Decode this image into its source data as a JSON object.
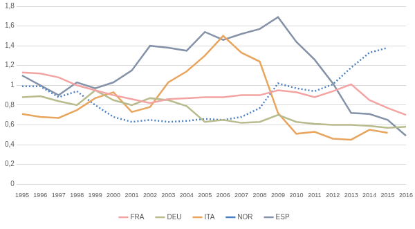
{
  "chart_data": {
    "type": "line",
    "categories": [
      "1995",
      "1996",
      "1997",
      "1998",
      "1999",
      "2000",
      "2001",
      "2002",
      "2003",
      "2004",
      "2005",
      "2006",
      "2007",
      "2008",
      "2009",
      "2010",
      "2011",
      "2012",
      "2013",
      "2014",
      "2015",
      "2016"
    ],
    "series": [
      {
        "name": "FRA",
        "color": "#f4a3a3",
        "line_style": "solid",
        "values": [
          1.13,
          1.12,
          1.08,
          1.0,
          0.95,
          0.9,
          0.86,
          0.82,
          0.86,
          0.87,
          0.88,
          0.88,
          0.9,
          0.9,
          0.95,
          0.93,
          0.88,
          0.94,
          1.01,
          0.85,
          0.77,
          0.7
        ]
      },
      {
        "name": "DEU",
        "color": "#b8bb8c",
        "line_style": "solid",
        "values": [
          0.88,
          0.89,
          0.84,
          0.8,
          0.95,
          0.85,
          0.8,
          0.87,
          0.85,
          0.79,
          0.63,
          0.65,
          0.62,
          0.63,
          0.7,
          0.63,
          0.61,
          0.6,
          0.6,
          0.59,
          0.57,
          0.58
        ]
      },
      {
        "name": "ITA",
        "color": "#e8a55e",
        "line_style": "solid",
        "values": [
          0.71,
          0.68,
          0.67,
          0.75,
          0.87,
          0.93,
          0.73,
          0.78,
          1.03,
          1.14,
          1.3,
          1.5,
          1.33,
          1.24,
          0.72,
          0.51,
          0.53,
          0.46,
          0.45,
          0.55,
          0.52,
          null
        ]
      },
      {
        "name": "NOR",
        "color": "#4a7fc1",
        "line_style": "dotted",
        "values": [
          0.99,
          0.99,
          0.88,
          0.94,
          0.8,
          0.68,
          0.63,
          0.65,
          0.63,
          0.64,
          0.66,
          0.65,
          0.68,
          0.77,
          1.02,
          0.97,
          0.94,
          1.01,
          1.18,
          1.33,
          1.38,
          null
        ]
      },
      {
        "name": "ESP",
        "color": "#8492a8",
        "line_style": "solid",
        "values": [
          1.1,
          1.0,
          0.9,
          1.03,
          0.97,
          1.03,
          1.15,
          1.4,
          1.38,
          1.35,
          1.54,
          1.46,
          1.52,
          1.57,
          1.69,
          1.44,
          1.26,
          1.02,
          0.72,
          0.71,
          0.65,
          0.49
        ]
      }
    ],
    "ylim": [
      0,
      1.8
    ],
    "yticks": [
      0,
      {
        "value": 0.2,
        "label": "0,2"
      },
      {
        "value": 0.4,
        "label": "0,4"
      },
      {
        "value": 0.6,
        "label": "0,6"
      },
      {
        "value": 0.8,
        "label": "0,8"
      },
      1,
      {
        "value": 1.2,
        "label": "1,2"
      },
      {
        "value": 1.4,
        "label": "1,4"
      },
      {
        "value": 1.6,
        "label": "1,6"
      },
      {
        "value": 1.8,
        "label": "1,8"
      }
    ],
    "grid": true,
    "legend": "bottom"
  }
}
